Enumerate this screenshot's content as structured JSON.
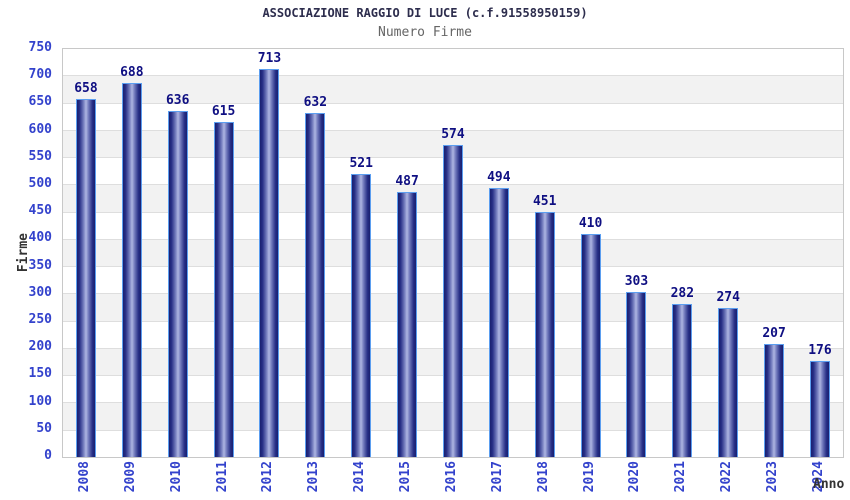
{
  "chart_data": {
    "type": "bar",
    "title": "ASSOCIAZIONE RAGGIO DI LUCE (c.f.91558950159)",
    "subtitle": "Numero Firme",
    "xlabel": "Anno",
    "ylabel": "Firme",
    "categories": [
      "2008",
      "2009",
      "2010",
      "2011",
      "2012",
      "2013",
      "2014",
      "2015",
      "2016",
      "2017",
      "2018",
      "2019",
      "2020",
      "2021",
      "2022",
      "2023",
      "2024"
    ],
    "values": [
      658,
      688,
      636,
      615,
      713,
      632,
      521,
      487,
      574,
      494,
      451,
      410,
      303,
      282,
      274,
      207,
      176
    ],
    "ylim": [
      0,
      750
    ],
    "ytick_step": 50,
    "yticks": [
      0,
      50,
      100,
      150,
      200,
      250,
      300,
      350,
      400,
      450,
      500,
      550,
      600,
      650,
      700,
      750
    ],
    "grid": true,
    "legend": "none",
    "bands_alternating": true
  },
  "colors": {
    "background": "#ffffff",
    "title": "#2d2d4d",
    "subtitle": "#666666",
    "tick_labels": "#3342cc",
    "value_labels": "#0f0f82",
    "axis_titles": "#333333",
    "plot_border": "#c8c8c8",
    "grid_line": "#dedede",
    "band_white": "#ffffff",
    "band_gray": "#f2f2f2",
    "bar_border": "#5b9ef0",
    "bar_edge": "#1a2070",
    "bar_center": "#aeb5e2"
  }
}
